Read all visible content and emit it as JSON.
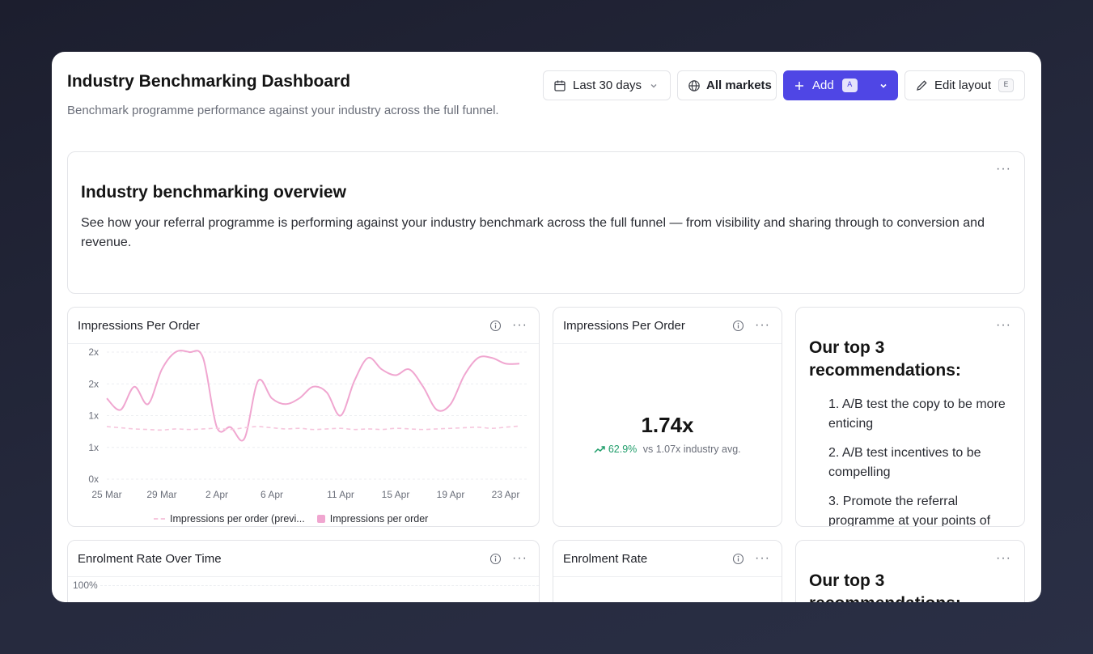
{
  "header": {
    "title": "Industry Benchmarking Dashboard",
    "subtitle": "Benchmark programme performance against your industry across the full funnel."
  },
  "toolbar": {
    "date_range": "Last 30 days",
    "markets": "All markets",
    "add_label": "Add",
    "add_shortcut": "A",
    "edit_label": "Edit layout",
    "edit_shortcut": "E"
  },
  "overview": {
    "title": "Industry benchmarking overview",
    "text": "See how your referral programme is performing against your industry benchmark across the full funnel — from visibility and sharing through to conversion and revenue."
  },
  "impressions_chart": {
    "title": "Impressions Per Order",
    "legend_previous": "Impressions per order (previ...",
    "legend_current": "Impressions per order"
  },
  "chart_data": {
    "type": "line",
    "title": "Impressions Per Order",
    "x_ticks": [
      "25 Mar",
      "29 Mar",
      "2 Apr",
      "6 Apr",
      "11 Apr",
      "15 Apr",
      "19 Apr",
      "23 Apr"
    ],
    "y_ticks": [
      "2x",
      "2x",
      "1x",
      "1x",
      "0x"
    ],
    "ylim": [
      0,
      2.2
    ],
    "x": [
      "25 Mar",
      "26 Mar",
      "27 Mar",
      "28 Mar",
      "29 Mar",
      "30 Mar",
      "31 Mar",
      "1 Apr",
      "2 Apr",
      "3 Apr",
      "4 Apr",
      "5 Apr",
      "6 Apr",
      "7 Apr",
      "8 Apr",
      "9 Apr",
      "10 Apr",
      "11 Apr",
      "12 Apr",
      "13 Apr",
      "14 Apr",
      "15 Apr",
      "16 Apr",
      "17 Apr",
      "18 Apr",
      "19 Apr",
      "20 Apr",
      "21 Apr",
      "22 Apr",
      "23 Apr",
      "24 Apr"
    ],
    "series": [
      {
        "name": "Impressions per order",
        "style": "solid",
        "color": "#f0a6d0",
        "values": [
          1.4,
          1.2,
          1.6,
          1.3,
          1.9,
          2.2,
          2.2,
          2.1,
          0.9,
          0.9,
          0.7,
          1.7,
          1.4,
          1.3,
          1.4,
          1.6,
          1.5,
          1.1,
          1.7,
          2.1,
          1.9,
          1.8,
          1.9,
          1.6,
          1.2,
          1.3,
          1.8,
          2.1,
          2.1,
          2.0,
          2.0
        ]
      },
      {
        "name": "Impressions per order (previous)",
        "style": "dashed",
        "color": "#f6c6dd",
        "values": [
          0.91,
          0.89,
          0.87,
          0.86,
          0.85,
          0.87,
          0.86,
          0.87,
          0.88,
          0.86,
          0.89,
          0.91,
          0.89,
          0.87,
          0.88,
          0.86,
          0.87,
          0.88,
          0.86,
          0.87,
          0.86,
          0.88,
          0.87,
          0.86,
          0.87,
          0.88,
          0.89,
          0.9,
          0.88,
          0.9,
          0.92
        ]
      }
    ],
    "grid": true,
    "legend": "bottom"
  },
  "impressions_metric": {
    "title": "Impressions Per Order",
    "value": "1.74x",
    "change": "62.9%",
    "comparison": "vs 1.07x industry avg."
  },
  "recommendations": {
    "title": "Our top 3 recommendations:",
    "items": [
      "1. A/B test the copy to be more enticing",
      "2. A/B test incentives to be compelling",
      "3. Promote the referral programme at your points of"
    ]
  },
  "enrolment_chart": {
    "title": "Enrolment Rate Over Time",
    "y_top": "100%"
  },
  "enrolment_metric": {
    "title": "Enrolment Rate"
  },
  "recommendations_2": {
    "title": "Our top 3 recommendations:"
  },
  "colors": {
    "accent": "#4f46e5",
    "positive": "#1f9d6a",
    "line_current": "#f0a6d0",
    "line_previous": "#f6c6dd"
  }
}
